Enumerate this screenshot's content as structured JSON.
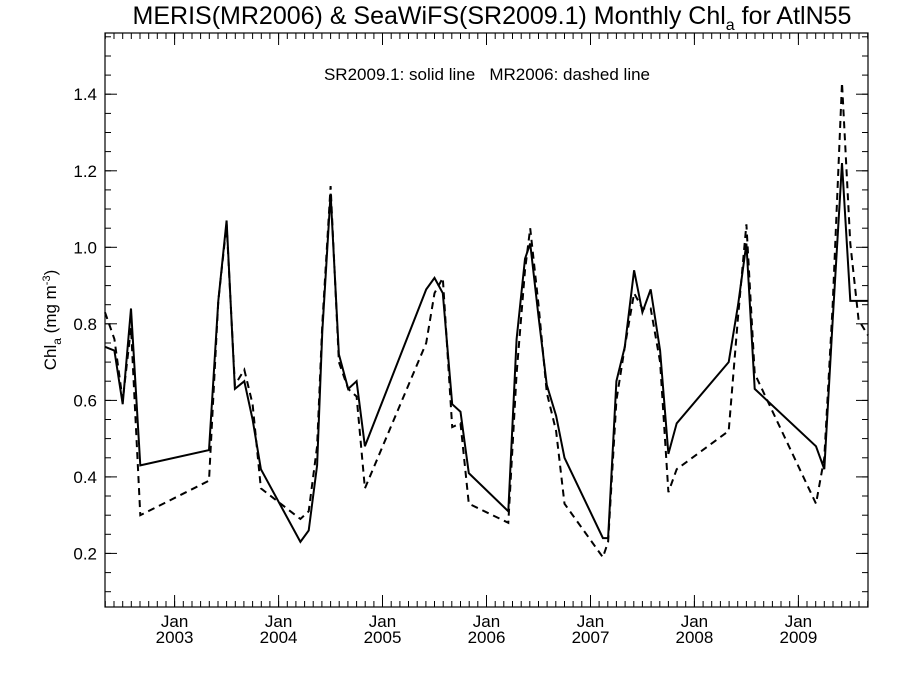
{
  "chart_data": {
    "type": "line",
    "title": {
      "main": "MERIS(MR2006) & SeaWiFS(SR2009.1) Monthly Chl",
      "sub": "a",
      "rest": " for AtlN55"
    },
    "annotation": "SR2009.1: solid line   MR2006: dashed line",
    "ylabel": {
      "main": "Chl",
      "sub": "a",
      "unit": " (mg m",
      "sup": "-3",
      "close": ")"
    },
    "xlim": [
      2002.33,
      2009.67
    ],
    "ylim": [
      0.06,
      1.56
    ],
    "y_ticks": [
      0.2,
      0.4,
      0.6,
      0.8,
      1.0,
      1.2,
      1.4
    ],
    "y_tick_labels": [
      "0.2",
      "0.4",
      "0.6",
      "0.8",
      "1.0",
      "1.2",
      "1.4"
    ],
    "x_ticks": [
      2003.0,
      2004.0,
      2005.0,
      2006.0,
      2007.0,
      2008.0,
      2009.0
    ],
    "x_tick_labels": [
      {
        "month": "Jan",
        "year": "2003"
      },
      {
        "month": "Jan",
        "year": "2004"
      },
      {
        "month": "Jan",
        "year": "2005"
      },
      {
        "month": "Jan",
        "year": "2006"
      },
      {
        "month": "Jan",
        "year": "2007"
      },
      {
        "month": "Jan",
        "year": "2008"
      },
      {
        "month": "Jan",
        "year": "2009"
      }
    ],
    "series": [
      {
        "name": "SR2009.1",
        "style": "solid",
        "color": "#000000",
        "x": [
          2002.33,
          2002.42,
          2002.5,
          2002.58,
          2002.67,
          2003.33,
          2003.42,
          2003.5,
          2003.58,
          2003.67,
          2003.75,
          2003.83,
          2004.21,
          2004.29,
          2004.37,
          2004.42,
          2004.5,
          2004.58,
          2004.67,
          2004.75,
          2004.83,
          2005.42,
          2005.5,
          2005.58,
          2005.67,
          2005.75,
          2005.83,
          2006.21,
          2006.29,
          2006.37,
          2006.42,
          2006.5,
          2006.58,
          2006.67,
          2006.75,
          2007.12,
          2007.17,
          2007.25,
          2007.33,
          2007.42,
          2007.5,
          2007.58,
          2007.67,
          2007.75,
          2007.83,
          2008.33,
          2008.42,
          2008.5,
          2008.58,
          2009.17,
          2009.25,
          2009.33,
          2009.42,
          2009.5,
          2009.58,
          2009.67
        ],
        "y": [
          0.74,
          0.73,
          0.59,
          0.84,
          0.43,
          0.47,
          0.86,
          1.07,
          0.63,
          0.65,
          0.55,
          0.42,
          0.23,
          0.26,
          0.43,
          0.78,
          1.14,
          0.72,
          0.63,
          0.65,
          0.48,
          0.89,
          0.92,
          0.88,
          0.59,
          0.57,
          0.41,
          0.31,
          0.76,
          0.97,
          1.01,
          0.82,
          0.64,
          0.56,
          0.45,
          0.24,
          0.24,
          0.65,
          0.74,
          0.94,
          0.83,
          0.89,
          0.73,
          0.46,
          0.54,
          0.7,
          0.85,
          1.01,
          0.63,
          0.48,
          0.42,
          0.81,
          1.22,
          0.86,
          0.86,
          0.86
        ]
      },
      {
        "name": "MR2006",
        "style": "dashed",
        "color": "#000000",
        "x": [
          2002.33,
          2002.42,
          2002.5,
          2002.58,
          2002.67,
          2003.33,
          2003.42,
          2003.5,
          2003.58,
          2003.67,
          2003.75,
          2003.83,
          2004.21,
          2004.29,
          2004.37,
          2004.42,
          2004.5,
          2004.58,
          2004.67,
          2004.75,
          2004.83,
          2005.42,
          2005.5,
          2005.58,
          2005.67,
          2005.75,
          2005.83,
          2006.21,
          2006.29,
          2006.37,
          2006.42,
          2006.5,
          2006.58,
          2006.67,
          2006.75,
          2007.12,
          2007.17,
          2007.25,
          2007.33,
          2007.42,
          2007.5,
          2007.58,
          2007.67,
          2007.75,
          2007.83,
          2008.33,
          2008.42,
          2008.5,
          2008.58,
          2009.17,
          2009.25,
          2009.33,
          2009.42,
          2009.5,
          2009.58,
          2009.67
        ],
        "y": [
          0.83,
          0.76,
          0.6,
          0.79,
          0.3,
          0.39,
          0.86,
          1.06,
          0.64,
          0.68,
          0.59,
          0.37,
          0.29,
          0.31,
          0.48,
          0.8,
          1.16,
          0.7,
          0.63,
          0.61,
          0.37,
          0.75,
          0.88,
          0.92,
          0.53,
          0.54,
          0.33,
          0.28,
          0.67,
          0.94,
          1.05,
          0.85,
          0.62,
          0.52,
          0.33,
          0.19,
          0.23,
          0.6,
          0.74,
          0.88,
          0.84,
          0.84,
          0.7,
          0.36,
          0.42,
          0.52,
          0.82,
          1.06,
          0.67,
          0.33,
          0.45,
          0.85,
          1.43,
          1.01,
          0.81,
          0.77
        ]
      }
    ]
  }
}
